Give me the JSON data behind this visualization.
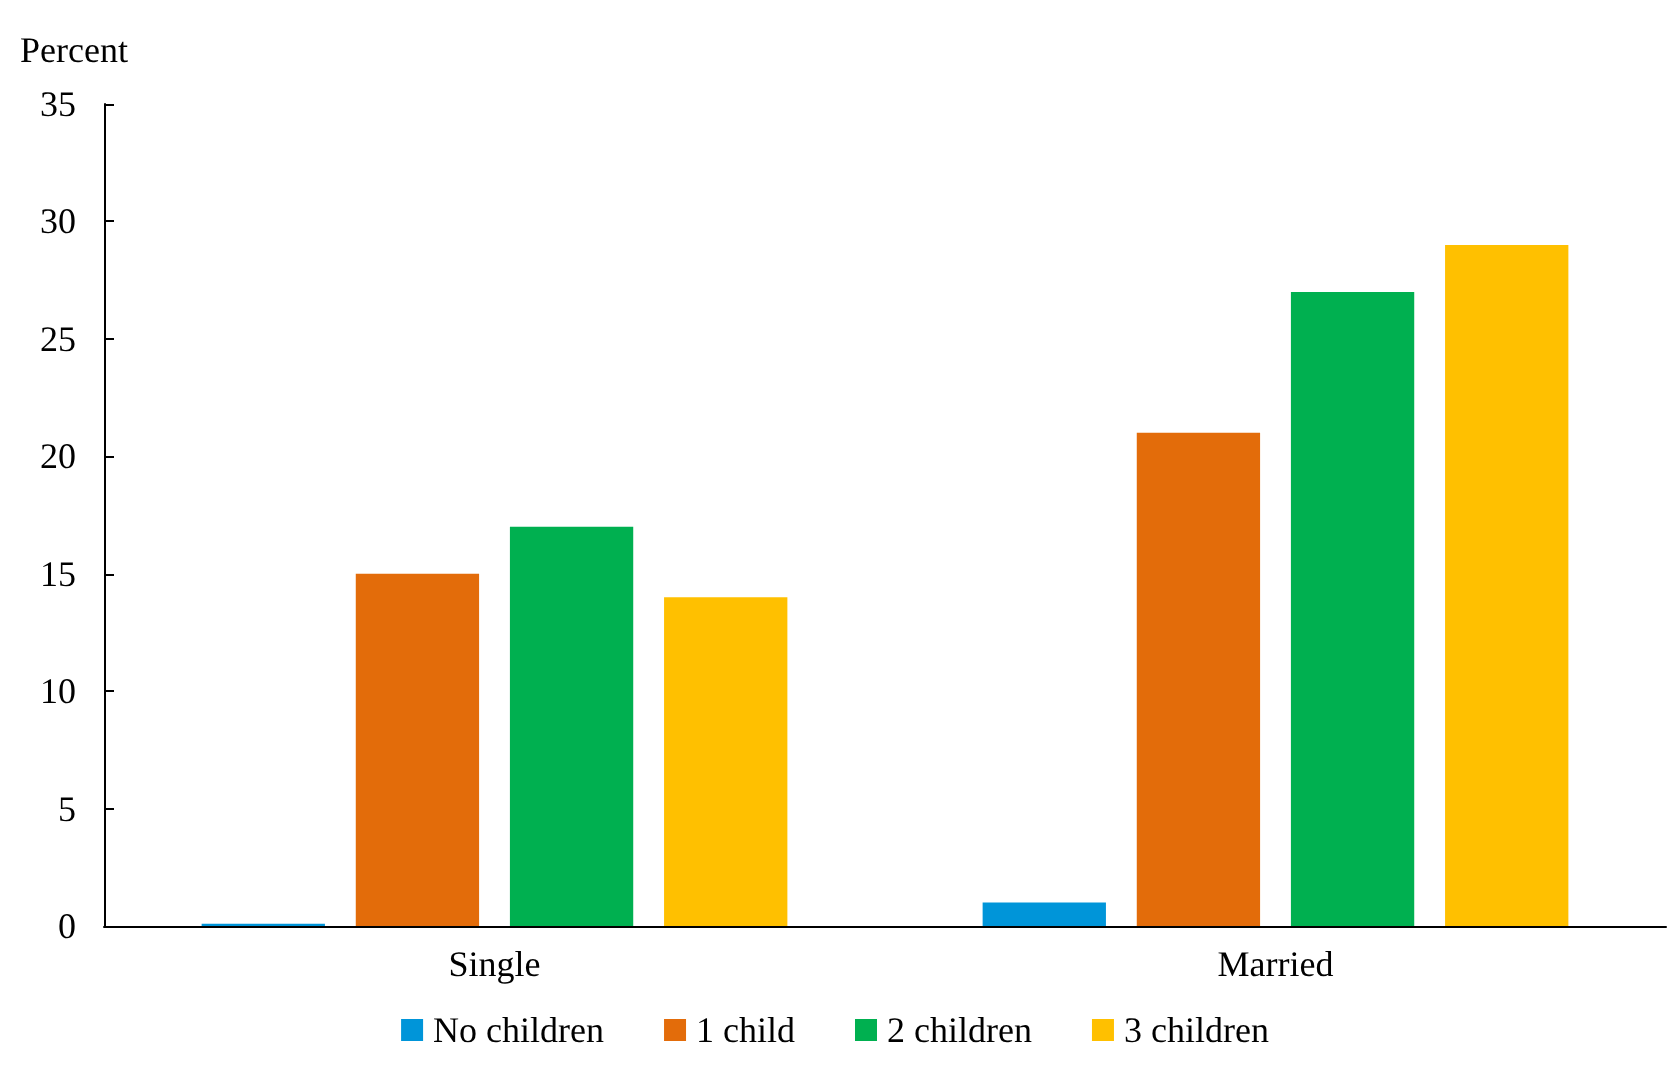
{
  "chart_data": {
    "type": "bar",
    "ylabel": "Percent",
    "categories": [
      "Single",
      "Married"
    ],
    "series": [
      {
        "name": "No children",
        "color": "#0095d9",
        "values": [
          0.1,
          1
        ]
      },
      {
        "name": "1 child",
        "color": "#e36c0a",
        "values": [
          15,
          21
        ]
      },
      {
        "name": "2 children",
        "color": "#00b050",
        "values": [
          17,
          27
        ]
      },
      {
        "name": "3 children",
        "color": "#ffc000",
        "values": [
          14,
          29
        ]
      }
    ],
    "ylim": [
      0,
      35
    ],
    "yticks": [
      0,
      5,
      10,
      15,
      20,
      25,
      30,
      35
    ],
    "grid": false,
    "legend": "bottom"
  }
}
